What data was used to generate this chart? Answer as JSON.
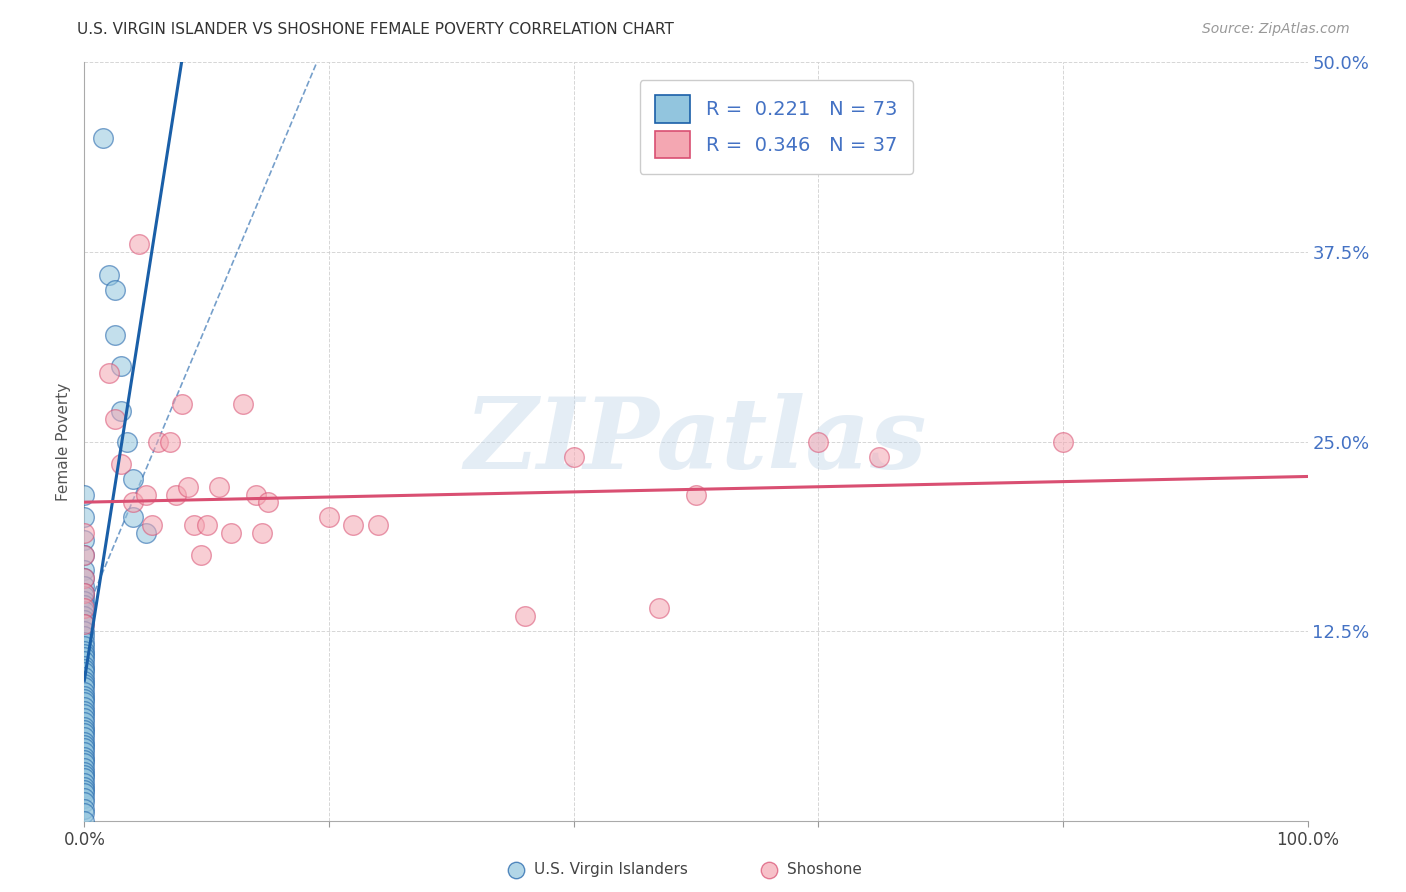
{
  "title": "U.S. VIRGIN ISLANDER VS SHOSHONE FEMALE POVERTY CORRELATION CHART",
  "source": "Source: ZipAtlas.com",
  "ylabel": "Female Poverty",
  "xlim": [
    0,
    1.0
  ],
  "ylim": [
    0,
    0.5
  ],
  "ytick_positions": [
    0,
    0.125,
    0.25,
    0.375,
    0.5
  ],
  "ytick_labels": [
    "",
    "12.5%",
    "25.0%",
    "37.5%",
    "50.0%"
  ],
  "xtick_positions": [
    0.0,
    0.2,
    0.4,
    0.6,
    0.8,
    1.0
  ],
  "xtick_labels": [
    "0.0%",
    "",
    "",
    "",
    "",
    "100.0%"
  ],
  "legend_label1": "U.S. Virgin Islanders",
  "legend_label2": "Shoshone",
  "R1": "0.221",
  "N1": "73",
  "R2": "0.346",
  "N2": "37",
  "color1": "#92c5de",
  "color2": "#f4a7b2",
  "trendline1_color": "#1a5fa8",
  "trendline2_color": "#d94f72",
  "bg_color": "#ffffff",
  "grid_color": "#cccccc",
  "blue_points_x": [
    0.0,
    0.0,
    0.0,
    0.0,
    0.0,
    0.0,
    0.0,
    0.0,
    0.0,
    0.0,
    0.0,
    0.0,
    0.0,
    0.0,
    0.0,
    0.0,
    0.0,
    0.0,
    0.0,
    0.0,
    0.0,
    0.0,
    0.0,
    0.0,
    0.0,
    0.0,
    0.0,
    0.0,
    0.0,
    0.0,
    0.0,
    0.0,
    0.0,
    0.0,
    0.0,
    0.0,
    0.0,
    0.0,
    0.0,
    0.0,
    0.0,
    0.0,
    0.0,
    0.0,
    0.0,
    0.0,
    0.0,
    0.0,
    0.0,
    0.0,
    0.0,
    0.0,
    0.0,
    0.0,
    0.0,
    0.0,
    0.0,
    0.0,
    0.0,
    0.0,
    0.0,
    0.0,
    0.0,
    0.015,
    0.02,
    0.025,
    0.025,
    0.03,
    0.03,
    0.035,
    0.04,
    0.04,
    0.05
  ],
  "blue_points_y": [
    0.215,
    0.2,
    0.185,
    0.175,
    0.165,
    0.16,
    0.155,
    0.15,
    0.148,
    0.145,
    0.142,
    0.138,
    0.135,
    0.132,
    0.13,
    0.125,
    0.122,
    0.118,
    0.115,
    0.112,
    0.11,
    0.108,
    0.105,
    0.102,
    0.1,
    0.098,
    0.095,
    0.092,
    0.09,
    0.088,
    0.085,
    0.082,
    0.08,
    0.078,
    0.075,
    0.072,
    0.07,
    0.068,
    0.065,
    0.062,
    0.06,
    0.058,
    0.055,
    0.052,
    0.05,
    0.048,
    0.045,
    0.042,
    0.04,
    0.038,
    0.035,
    0.032,
    0.03,
    0.028,
    0.025,
    0.022,
    0.02,
    0.018,
    0.015,
    0.012,
    0.008,
    0.005,
    0.0,
    0.45,
    0.36,
    0.35,
    0.32,
    0.3,
    0.27,
    0.25,
    0.225,
    0.2,
    0.19
  ],
  "pink_points_x": [
    0.0,
    0.0,
    0.0,
    0.0,
    0.0,
    0.0,
    0.02,
    0.025,
    0.03,
    0.04,
    0.045,
    0.05,
    0.055,
    0.06,
    0.07,
    0.075,
    0.08,
    0.085,
    0.09,
    0.095,
    0.1,
    0.11,
    0.12,
    0.13,
    0.14,
    0.145,
    0.15,
    0.2,
    0.22,
    0.24,
    0.36,
    0.4,
    0.47,
    0.5,
    0.6,
    0.65,
    0.8
  ],
  "pink_points_y": [
    0.19,
    0.175,
    0.16,
    0.15,
    0.14,
    0.13,
    0.295,
    0.265,
    0.235,
    0.21,
    0.38,
    0.215,
    0.195,
    0.25,
    0.25,
    0.215,
    0.275,
    0.22,
    0.195,
    0.175,
    0.195,
    0.22,
    0.19,
    0.275,
    0.215,
    0.19,
    0.21,
    0.2,
    0.195,
    0.195,
    0.135,
    0.24,
    0.14,
    0.215,
    0.25,
    0.24,
    0.25
  ],
  "watermark_text": "ZIPatlas",
  "watermark_color": "#c5d8ea",
  "dashed_line": [
    [
      0.0,
      0.19
    ],
    [
      0.135,
      0.5
    ]
  ]
}
